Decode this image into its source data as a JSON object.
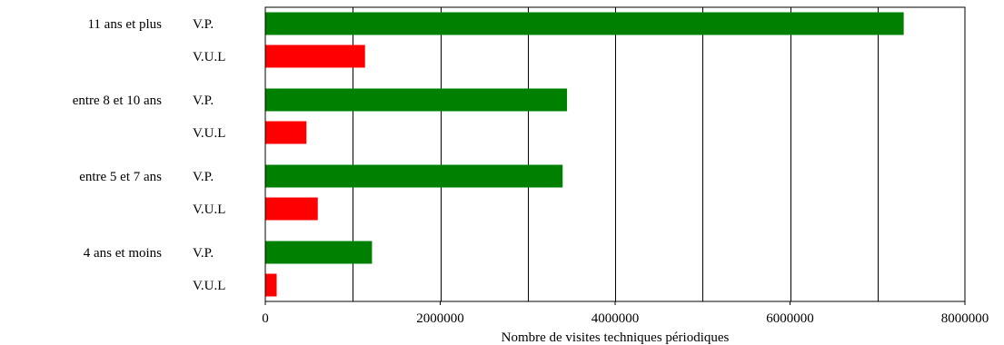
{
  "chart_data": {
    "type": "bar",
    "orientation": "horizontal",
    "title": "",
    "xlabel": "Nombre de visites techniques périodiques",
    "ylabel": "",
    "xlim": [
      0,
      8000000
    ],
    "x_ticks": [
      0,
      2000000,
      4000000,
      6000000,
      8000000
    ],
    "x_tick_labels": [
      "0",
      "2000000",
      "4000000",
      "6000000",
      "8000000"
    ],
    "vertical_grid": true,
    "categories": [
      "11 ans et plus",
      "entre 8 et 10 ans",
      "entre 5 et 7 ans",
      "4 ans et moins"
    ],
    "series": [
      {
        "name": "V.P.",
        "color": "#008000",
        "values": [
          7300000,
          3450000,
          3400000,
          1220000
        ]
      },
      {
        "name": "V.U.L",
        "color": "#ff0000",
        "values": [
          1140000,
          470000,
          600000,
          130000
        ]
      }
    ]
  }
}
